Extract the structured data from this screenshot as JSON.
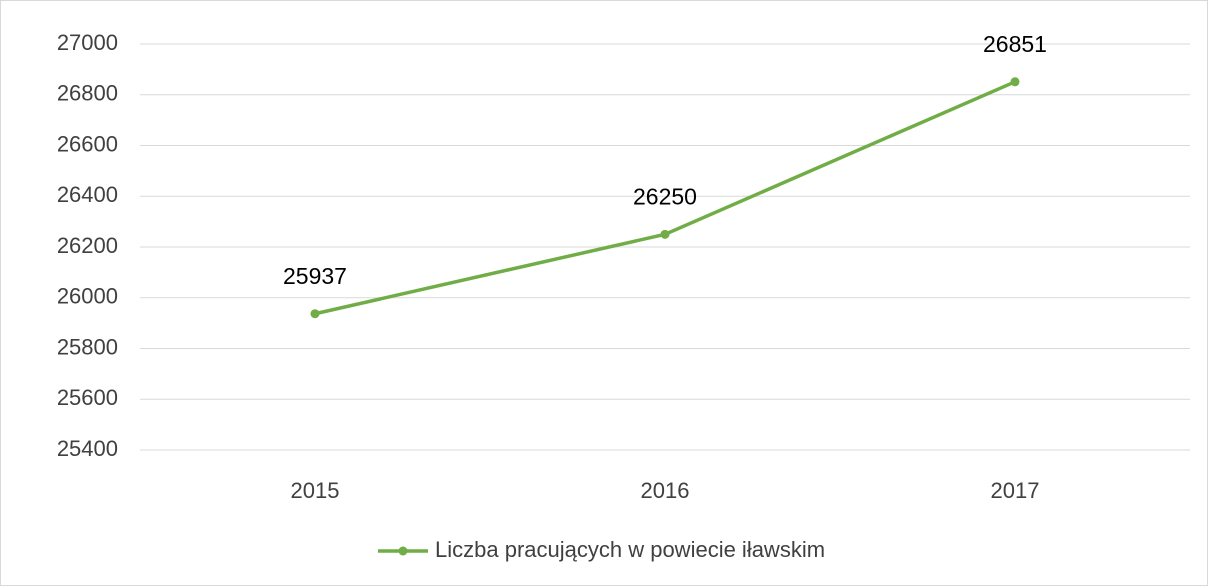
{
  "chart_data": {
    "type": "line",
    "categories": [
      "2015",
      "2016",
      "2017"
    ],
    "series": [
      {
        "name": "Liczba pracujących w powiecie iławskim",
        "color": "#70ad47",
        "values": [
          25937,
          26250,
          26851
        ]
      }
    ],
    "ylim": [
      25400,
      27000
    ],
    "yticks": [
      25400,
      25600,
      25800,
      26000,
      26200,
      26400,
      26600,
      26800,
      27000
    ],
    "grid": true,
    "legend": "bottom"
  }
}
